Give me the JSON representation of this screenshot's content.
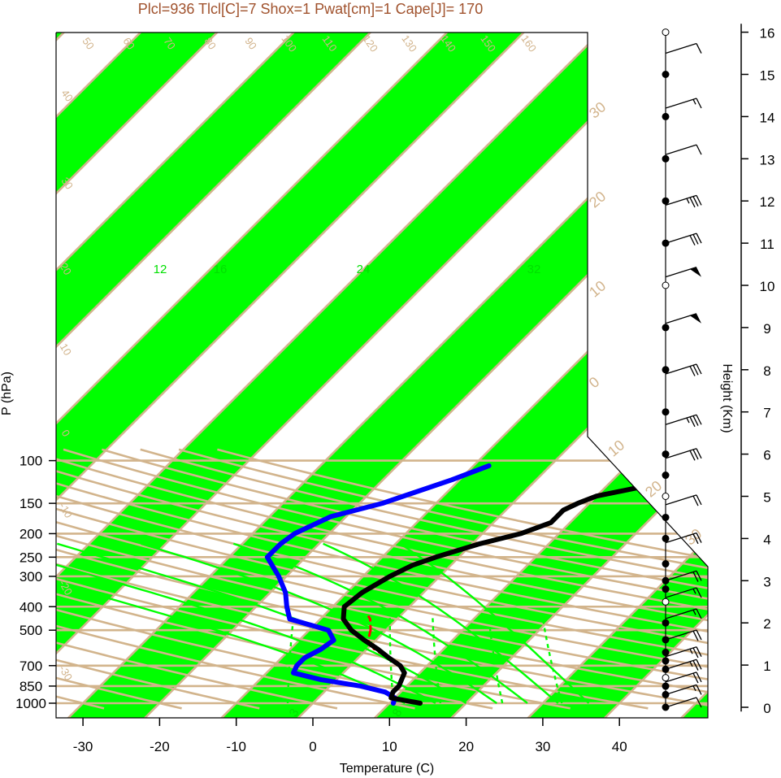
{
  "chart_data": {
    "type": "line",
    "title": "Plcl=936 Tlcl[C]=7 Shox=1 Pwat[cm]=1 Cape[J]= 170",
    "xlabel": "Temperature (C)",
    "ylabel": "P (hPa)",
    "y2label": "Height (Km)",
    "xlim": [
      -34,
      51
    ],
    "x_ticks": [
      "-30",
      "-20",
      "-10",
      "0",
      "10",
      "20",
      "30",
      "40"
    ],
    "pressure_ticks": [
      "100",
      "150",
      "200",
      "250",
      "300",
      "400",
      "500",
      "700",
      "850",
      "1000"
    ],
    "height_ticks": [
      "0",
      "1",
      "2",
      "3",
      "4",
      "5",
      "6",
      "7",
      "8",
      "9",
      "10",
      "11",
      "12",
      "13",
      "14",
      "15",
      "16"
    ],
    "colors": {
      "temperature": "#000000",
      "dewpoint": "#0000ff",
      "parcel": "#ff0000",
      "isotherm_band": "#00ff00",
      "isobar": "#d2b48c",
      "mixing_ratio": "#00ff00",
      "title": "#a0522d"
    },
    "temperature_profile": [
      {
        "p": 1000,
        "t": 14
      },
      {
        "p": 950,
        "t": 9.5
      },
      {
        "p": 900,
        "t": 9
      },
      {
        "p": 850,
        "t": 9
      },
      {
        "p": 800,
        "t": 8.5
      },
      {
        "p": 750,
        "t": 8
      },
      {
        "p": 700,
        "t": 6.5
      },
      {
        "p": 650,
        "t": 4
      },
      {
        "p": 600,
        "t": 1.5
      },
      {
        "p": 550,
        "t": -1.5
      },
      {
        "p": 500,
        "t": -4.5
      },
      {
        "p": 450,
        "t": -7
      },
      {
        "p": 400,
        "t": -8.5
      },
      {
        "p": 350,
        "t": -8
      },
      {
        "p": 300,
        "t": -6.5
      },
      {
        "p": 270,
        "t": -5
      },
      {
        "p": 250,
        "t": -3
      },
      {
        "p": 220,
        "t": 1
      },
      {
        "p": 200,
        "t": 5
      },
      {
        "p": 180,
        "t": 7.5
      },
      {
        "p": 160,
        "t": 7.5
      },
      {
        "p": 150,
        "t": 8.5
      },
      {
        "p": 140,
        "t": 10
      },
      {
        "p": 130,
        "t": 14
      },
      {
        "p": 120,
        "t": 18
      },
      {
        "p": 110,
        "t": 18
      },
      {
        "p": 105,
        "t": 19
      }
    ],
    "dewpoint_profile": [
      {
        "p": 1000,
        "t": 10.5
      },
      {
        "p": 950,
        "t": 10
      },
      {
        "p": 900,
        "t": 8
      },
      {
        "p": 850,
        "t": 4
      },
      {
        "p": 800,
        "t": -2
      },
      {
        "p": 750,
        "t": -6.5
      },
      {
        "p": 700,
        "t": -7
      },
      {
        "p": 650,
        "t": -7
      },
      {
        "p": 600,
        "t": -6
      },
      {
        "p": 550,
        "t": -5.5
      },
      {
        "p": 500,
        "t": -7.5
      },
      {
        "p": 450,
        "t": -14
      },
      {
        "p": 400,
        "t": -16
      },
      {
        "p": 350,
        "t": -18
      },
      {
        "p": 300,
        "t": -21
      },
      {
        "p": 250,
        "t": -25
      },
      {
        "p": 220,
        "t": -25
      },
      {
        "p": 200,
        "t": -24.5
      },
      {
        "p": 170,
        "t": -22
      },
      {
        "p": 150,
        "t": -17
      },
      {
        "p": 120,
        "t": -11
      },
      {
        "p": 105,
        "t": -8
      }
    ],
    "parcel_profile": [
      {
        "p": 700,
        "t": 6.5
      },
      {
        "p": 650,
        "t": 4
      },
      {
        "p": 600,
        "t": 1
      },
      {
        "p": 550,
        "t": -1
      },
      {
        "p": 500,
        "t": -2
      },
      {
        "p": 450,
        "t": -3.5
      },
      {
        "p": 440,
        "t": -4
      }
    ],
    "isotherm_labels": [
      "-30",
      "-20",
      "-10",
      "0",
      "10",
      "20",
      "30"
    ],
    "potential_temp_labels": [
      "50",
      "60",
      "70",
      "80",
      "90",
      "100",
      "110",
      "120",
      "130",
      "140",
      "150",
      "160"
    ],
    "mixing_ratio_labels": [
      "12",
      "16",
      "24",
      "32"
    ],
    "mixing_ratio_bottom_labels": [
      "3",
      "8"
    ],
    "height_km": [
      0,
      0.3,
      0.5,
      0.7,
      0.9,
      1.1,
      1.3,
      1.6,
      2,
      2.5,
      2.8,
      3,
      3.4,
      4,
      4.5,
      5,
      5.5,
      6,
      7,
      8,
      9,
      10,
      11,
      12,
      13,
      14,
      15,
      16
    ],
    "wind_barbs": [
      {
        "h": 0,
        "flag": 0,
        "full": 1,
        "half": 0
      },
      {
        "h": 0.3,
        "flag": 0,
        "full": 1,
        "half": 1
      },
      {
        "h": 0.6,
        "flag": 0,
        "full": 2,
        "half": 0
      },
      {
        "h": 0.9,
        "flag": 0,
        "full": 2,
        "half": 1
      },
      {
        "h": 1.2,
        "flag": 0,
        "full": 2,
        "half": 1
      },
      {
        "h": 1.6,
        "flag": 0,
        "full": 2,
        "half": 0
      },
      {
        "h": 2.1,
        "flag": 0,
        "full": 1,
        "half": 1
      },
      {
        "h": 2.6,
        "flag": 0,
        "full": 1,
        "half": 1
      },
      {
        "h": 3.0,
        "flag": 0,
        "full": 2,
        "half": 0
      },
      {
        "h": 3.9,
        "flag": 0,
        "full": 2,
        "half": 0
      },
      {
        "h": 4.8,
        "flag": 0,
        "full": 2,
        "half": 0
      },
      {
        "h": 5.9,
        "flag": 0,
        "full": 3,
        "half": 0
      },
      {
        "h": 6.7,
        "flag": 0,
        "full": 3,
        "half": 1
      },
      {
        "h": 7.9,
        "flag": 0,
        "full": 3,
        "half": 0
      },
      {
        "h": 9.1,
        "flag": 1,
        "full": 0,
        "half": 0
      },
      {
        "h": 10.2,
        "flag": 1,
        "full": 0,
        "half": 0
      },
      {
        "h": 11,
        "flag": 0,
        "full": 3,
        "half": 0
      },
      {
        "h": 11.9,
        "flag": 0,
        "full": 3,
        "half": 1
      },
      {
        "h": 13.1,
        "flag": 0,
        "full": 1,
        "half": 0
      },
      {
        "h": 14.2,
        "flag": 0,
        "full": 1,
        "half": 1
      },
      {
        "h": 15.5,
        "flag": 0,
        "full": 1,
        "half": 0
      }
    ]
  }
}
